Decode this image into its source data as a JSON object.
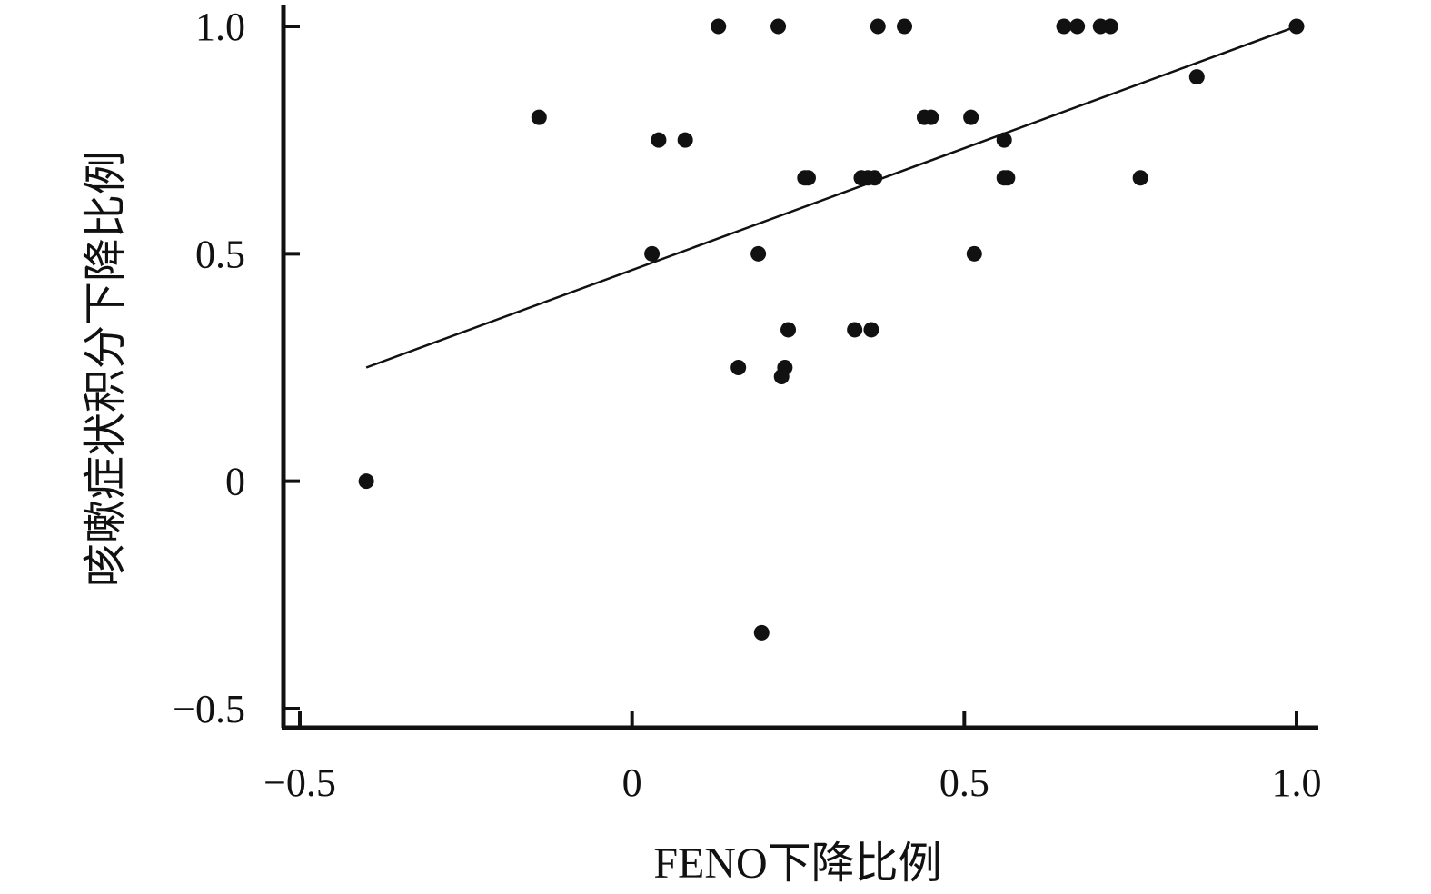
{
  "chart_data": {
    "type": "scatter",
    "title": "",
    "xlabel": "FENO下降比例",
    "ylabel": "咳嗽症状积分下降比例",
    "xlim": [
      -0.55,
      1.05
    ],
    "ylim": [
      -0.55,
      1.05
    ],
    "x_ticks": [
      {
        "value": -0.5,
        "label": "−0.5"
      },
      {
        "value": 0,
        "label": "0"
      },
      {
        "value": 0.5,
        "label": "0.5"
      },
      {
        "value": 1.0,
        "label": "1.0"
      }
    ],
    "y_ticks": [
      {
        "value": -0.5,
        "label": "−0.5"
      },
      {
        "value": 0,
        "label": "0"
      },
      {
        "value": 0.5,
        "label": "0.5"
      },
      {
        "value": 1.0,
        "label": "1.0"
      }
    ],
    "grid": false,
    "fit_line": {
      "x": [
        -0.4,
        1.0
      ],
      "y": [
        0.25,
        1.0
      ]
    },
    "points": [
      {
        "x": -0.4,
        "y": 0.0
      },
      {
        "x": -0.14,
        "y": 0.8
      },
      {
        "x": 0.03,
        "y": 0.5
      },
      {
        "x": 0.04,
        "y": 0.75
      },
      {
        "x": 0.08,
        "y": 0.75
      },
      {
        "x": 0.13,
        "y": 1.0
      },
      {
        "x": 0.16,
        "y": 0.25
      },
      {
        "x": 0.19,
        "y": 0.5
      },
      {
        "x": 0.195,
        "y": -0.333
      },
      {
        "x": 0.22,
        "y": 1.0
      },
      {
        "x": 0.225,
        "y": 0.23
      },
      {
        "x": 0.23,
        "y": 0.25
      },
      {
        "x": 0.235,
        "y": 0.333
      },
      {
        "x": 0.26,
        "y": 0.667
      },
      {
        "x": 0.265,
        "y": 0.667
      },
      {
        "x": 0.335,
        "y": 0.333
      },
      {
        "x": 0.345,
        "y": 0.667
      },
      {
        "x": 0.355,
        "y": 0.667
      },
      {
        "x": 0.36,
        "y": 0.333
      },
      {
        "x": 0.365,
        "y": 0.667
      },
      {
        "x": 0.37,
        "y": 1.0
      },
      {
        "x": 0.41,
        "y": 1.0
      },
      {
        "x": 0.44,
        "y": 0.8
      },
      {
        "x": 0.45,
        "y": 0.8
      },
      {
        "x": 0.51,
        "y": 0.8
      },
      {
        "x": 0.515,
        "y": 0.5
      },
      {
        "x": 0.56,
        "y": 0.75
      },
      {
        "x": 0.56,
        "y": 0.667
      },
      {
        "x": 0.565,
        "y": 0.667
      },
      {
        "x": 0.65,
        "y": 1.0
      },
      {
        "x": 0.67,
        "y": 1.0
      },
      {
        "x": 0.705,
        "y": 1.0
      },
      {
        "x": 0.72,
        "y": 1.0
      },
      {
        "x": 0.765,
        "y": 0.667
      },
      {
        "x": 0.85,
        "y": 0.889
      },
      {
        "x": 1.0,
        "y": 1.0
      }
    ]
  }
}
